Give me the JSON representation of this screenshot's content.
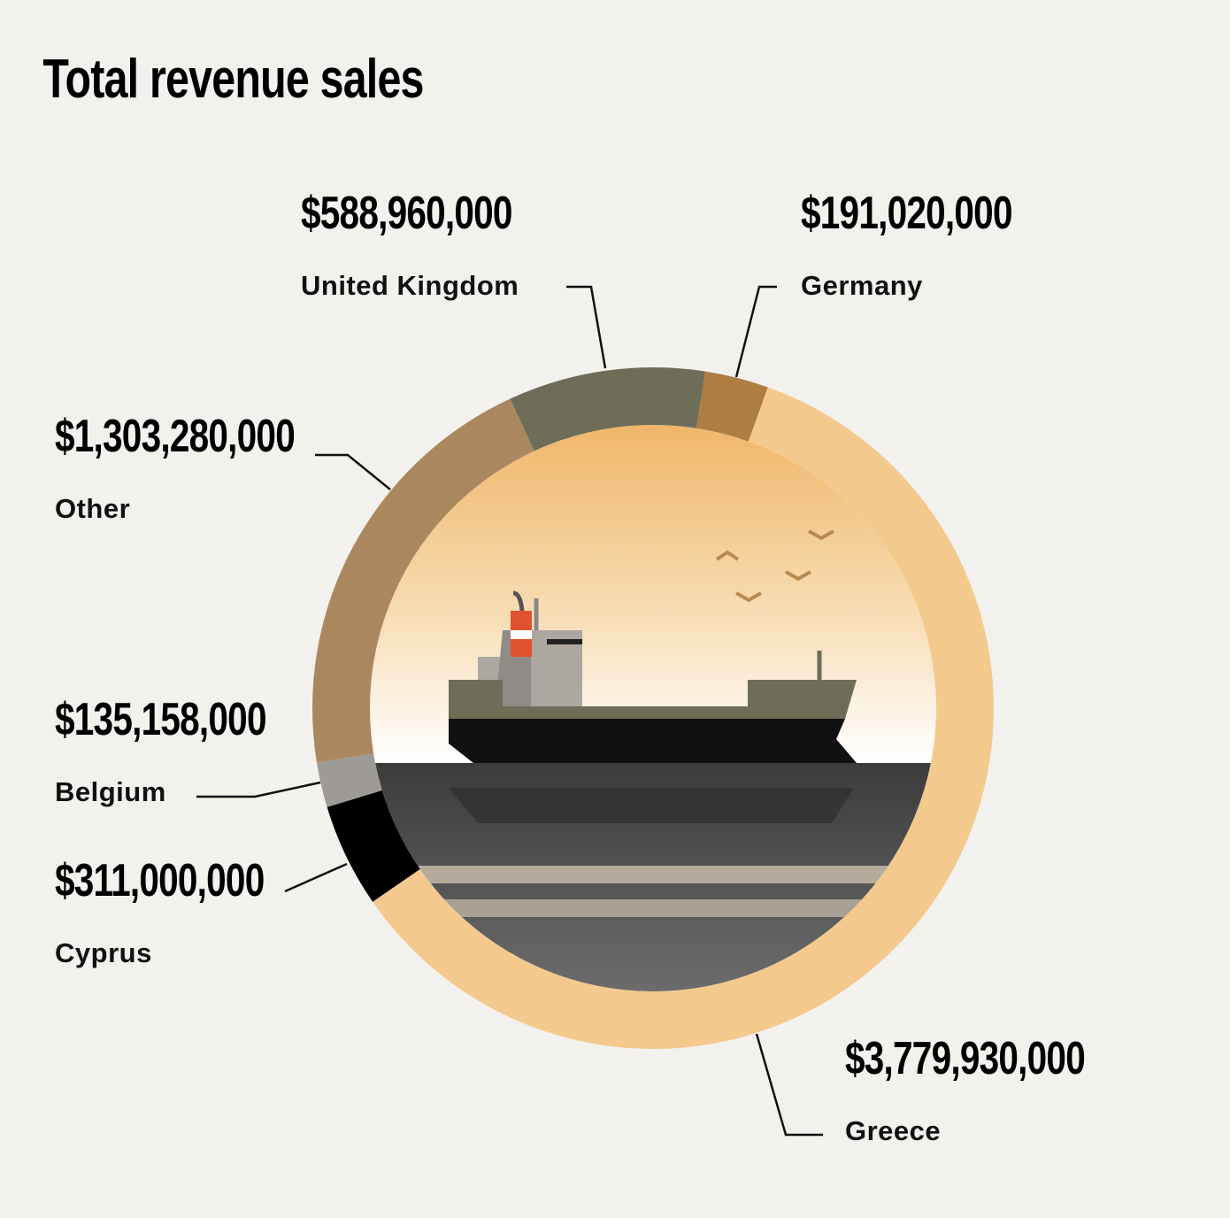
{
  "chart_data": {
    "type": "donut",
    "title": "Total revenue sales",
    "categories": [
      "Germany",
      "Greece",
      "Cyprus",
      "Belgium",
      "Other",
      "United Kingdom"
    ],
    "values": [
      191020000,
      3779930000,
      311000000,
      135158000,
      1303280000,
      588960000
    ],
    "value_labels": [
      "$191,020,000",
      "$3,779,930,000",
      "$311,000,000",
      "$135,158,000",
      "$1,303,280,000",
      "$588,960,000"
    ],
    "colors": [
      "#ad7d42",
      "#f4c98e",
      "#000000",
      "#9e9b96",
      "#ab8760",
      "#6e6d58"
    ]
  }
}
